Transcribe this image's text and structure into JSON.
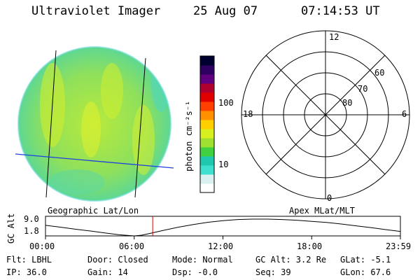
{
  "header": {
    "instrument": "Ultraviolet Imager",
    "date": "25 Aug 07",
    "time": "07:14:53 UT"
  },
  "colorbar": {
    "label": "photon cm⁻²s⁻¹",
    "ticks": [
      {
        "label": "100",
        "value": 100
      },
      {
        "label": "10",
        "value": 10
      }
    ],
    "range": [
      2.5,
      600
    ],
    "scale": "log",
    "colors": [
      "#ffffff",
      "#d8f0f0",
      "#40e0d0",
      "#20c8b0",
      "#40d040",
      "#a0e030",
      "#d8f020",
      "#ffd000",
      "#ff9000",
      "#ff4000",
      "#e00000",
      "#b00030",
      "#600080",
      "#300060",
      "#000030"
    ]
  },
  "polar_plot": {
    "clock_labels": {
      "top": "12",
      "left": "18",
      "right": "6",
      "bottom": "0"
    },
    "lat_labels": [
      "60",
      "70",
      "80"
    ]
  },
  "image_panel": {
    "label": "Geographic Lat/Lon"
  },
  "right_panel_label": "Apex MLat/MLT",
  "chart_data": {
    "type": "line",
    "ylabel": "GC Alt",
    "y_ticks": [
      "9.0",
      "1.8"
    ],
    "ylim": [
      1.8,
      9.0
    ],
    "x_ticks": [
      "00:00",
      "06:00",
      "12:00",
      "18:00",
      "23:59"
    ],
    "xlim_hours": [
      0,
      24
    ],
    "current_time_hours": 7.248,
    "series": [
      {
        "x": [
          0,
          1,
          2,
          3,
          4,
          5,
          6,
          6.5,
          7,
          8,
          9,
          10,
          11,
          12,
          13,
          14,
          15,
          16,
          17,
          18,
          19,
          20,
          21,
          22,
          23,
          24
        ],
        "values": [
          6.2,
          5.4,
          4.5,
          3.7,
          2.8,
          2.0,
          1.5,
          1.8,
          2.5,
          4.0,
          5.4,
          6.6,
          7.6,
          8.3,
          8.8,
          9.0,
          9.0,
          8.8,
          8.5,
          8.0,
          7.5,
          6.8,
          6.0,
          5.2,
          4.3,
          3.5
        ]
      }
    ]
  },
  "status": {
    "flt": "Flt: LBHL",
    "ip": "IP: 36.0",
    "door": "Door: Closed",
    "gain": "Gain: 14",
    "mode": "Mode: Normal",
    "dsp": "Dsp:    -0.0",
    "gc_alt": "GC Alt: 3.2 Re",
    "seq": "Seq: 39",
    "glat": "GLat:   -5.1",
    "glon": "GLon:   67.6"
  }
}
